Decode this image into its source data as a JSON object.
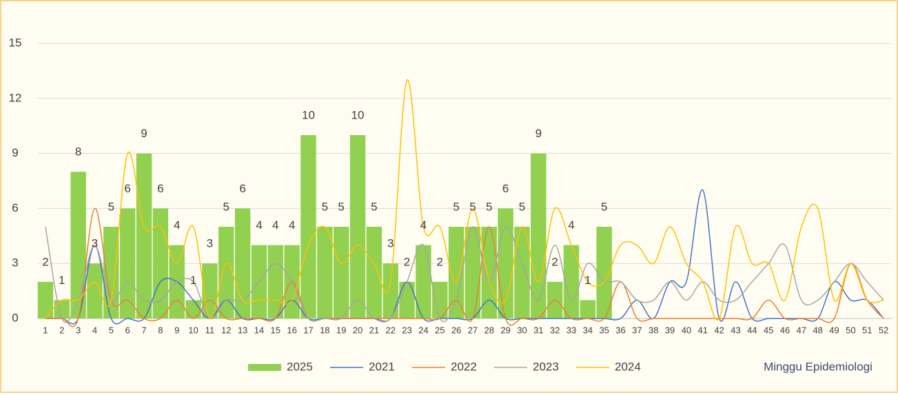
{
  "chart_data": {
    "type": "bar_line",
    "x_label": "Minggu Epidemiologi",
    "categories": [
      "1",
      "2",
      "3",
      "4",
      "5",
      "6",
      "7",
      "8",
      "9",
      "10",
      "11",
      "12",
      "13",
      "14",
      "15",
      "16",
      "17",
      "18",
      "19",
      "20",
      "21",
      "22",
      "23",
      "24",
      "25",
      "26",
      "27",
      "28",
      "29",
      "30",
      "31",
      "32",
      "33",
      "34",
      "35",
      "36",
      "37",
      "38",
      "39",
      "40",
      "41",
      "42",
      "43",
      "44",
      "45",
      "46",
      "47",
      "48",
      "49",
      "50",
      "51",
      "52"
    ],
    "ylim": [
      0,
      15
    ],
    "yticks": [
      0,
      3,
      6,
      9,
      12,
      15
    ],
    "grid": true,
    "series": [
      {
        "name": "2025",
        "type": "bar",
        "color": "#92d050",
        "values": [
          2,
          1,
          8,
          3,
          5,
          6,
          9,
          6,
          4,
          1,
          3,
          5,
          6,
          4,
          4,
          4,
          10,
          5,
          5,
          10,
          5,
          3,
          2,
          4,
          2,
          5,
          5,
          5,
          6,
          5,
          9,
          2,
          4,
          1,
          5,
          null,
          null,
          null,
          null,
          null,
          null,
          null,
          null,
          null,
          null,
          null,
          null,
          null,
          null,
          null,
          null,
          null
        ]
      },
      {
        "name": "2021",
        "type": "line",
        "color": "#4472c4",
        "values": [
          0,
          0,
          0,
          4,
          0,
          0,
          0,
          2,
          2,
          1,
          0,
          1,
          0,
          0,
          0,
          1,
          0,
          0,
          0,
          0,
          0,
          0,
          2,
          0,
          0,
          0,
          0,
          1,
          0,
          0,
          0,
          0,
          0,
          0,
          0,
          0,
          1,
          0,
          2,
          2,
          7,
          0,
          2,
          0,
          0,
          0,
          0,
          0,
          2,
          1,
          1,
          0
        ]
      },
      {
        "name": "2022",
        "type": "line",
        "color": "#ed7d31",
        "values": [
          0,
          0,
          0,
          6,
          1,
          1,
          0,
          0,
          1,
          0,
          1,
          0,
          0,
          0,
          0,
          2,
          0,
          0,
          0,
          0,
          0,
          0,
          0,
          0,
          0,
          1,
          0,
          5,
          0,
          0,
          0,
          1,
          0,
          0,
          0,
          2,
          0,
          0,
          0,
          0,
          0,
          0,
          0,
          0,
          1,
          0,
          0,
          0,
          0,
          3,
          1,
          0
        ]
      },
      {
        "name": "2023",
        "type": "line",
        "color": "#a5a5a5",
        "values": [
          5,
          0,
          1,
          4,
          1,
          2,
          1,
          1,
          2,
          2,
          0,
          1,
          1,
          2,
          3,
          2,
          0,
          0,
          0,
          1,
          0,
          0,
          2,
          4,
          0,
          1,
          5,
          2,
          5,
          3,
          1,
          4,
          1,
          3,
          2,
          2,
          1,
          1,
          2,
          1,
          2,
          1,
          1,
          2,
          3,
          4,
          1,
          1,
          2,
          3,
          2,
          1
        ]
      },
      {
        "name": "2024",
        "type": "line",
        "color": "#ffc000",
        "values": [
          0,
          1,
          1,
          2,
          1,
          9,
          5,
          5,
          3,
          5,
          0,
          3,
          1,
          1,
          1,
          1,
          4,
          5,
          3,
          4,
          3,
          2,
          13,
          5,
          5,
          2,
          6,
          2,
          1,
          5,
          2,
          6,
          4,
          2,
          2,
          4,
          4,
          3,
          5,
          3,
          2,
          0,
          5,
          3,
          3,
          1,
          5,
          6,
          1,
          3,
          1,
          1
        ]
      }
    ]
  }
}
